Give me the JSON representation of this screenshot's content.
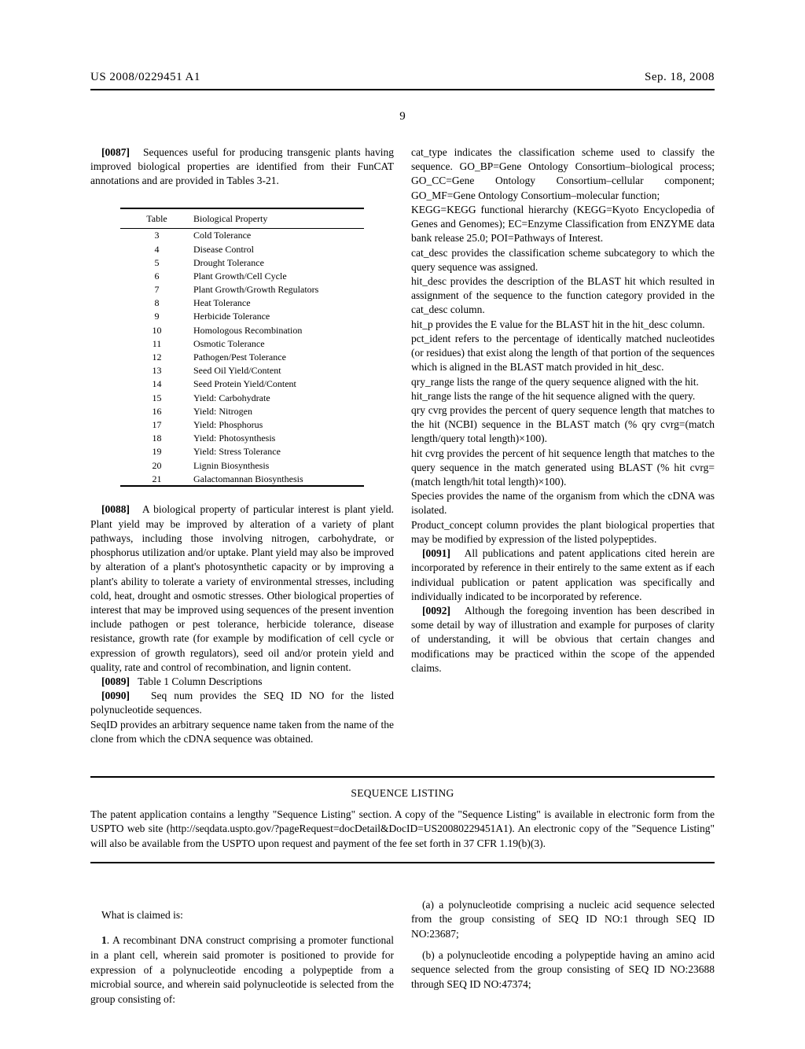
{
  "header": {
    "pub_number": "US 2008/0229451 A1",
    "pub_date": "Sep. 18, 2008",
    "page_number": "9"
  },
  "left_column": {
    "para_0087_num": "[0087]",
    "para_0087": "Sequences useful for producing transgenic plants having improved biological properties are identified from their FunCAT annotations and are provided in Tables 3-21.",
    "table": {
      "headers": [
        "Table",
        "Biological Property"
      ],
      "rows": [
        [
          "3",
          "Cold Tolerance"
        ],
        [
          "4",
          "Disease Control"
        ],
        [
          "5",
          "Drought Tolerance"
        ],
        [
          "6",
          "Plant Growth/Cell Cycle"
        ],
        [
          "7",
          "Plant Growth/Growth Regulators"
        ],
        [
          "8",
          "Heat Tolerance"
        ],
        [
          "9",
          "Herbicide Tolerance"
        ],
        [
          "10",
          "Homologous Recombination"
        ],
        [
          "11",
          "Osmotic Tolerance"
        ],
        [
          "12",
          "Pathogen/Pest Tolerance"
        ],
        [
          "13",
          "Seed Oil Yield/Content"
        ],
        [
          "14",
          "Seed Protein Yield/Content"
        ],
        [
          "15",
          "Yield: Carbohydrate"
        ],
        [
          "16",
          "Yield: Nitrogen"
        ],
        [
          "17",
          "Yield: Phosphorus"
        ],
        [
          "18",
          "Yield: Photosynthesis"
        ],
        [
          "19",
          "Yield: Stress Tolerance"
        ],
        [
          "20",
          "Lignin Biosynthesis"
        ],
        [
          "21",
          "Galactomannan Biosynthesis"
        ]
      ]
    },
    "para_0088_num": "[0088]",
    "para_0088": "A biological property of particular interest is plant yield. Plant yield may be improved by alteration of a variety of plant pathways, including those involving nitrogen, carbohydrate, or phosphorus utilization and/or uptake. Plant yield may also be improved by alteration of a plant's photosynthetic capacity or by improving a plant's ability to tolerate a variety of environmental stresses, including cold, heat, drought and osmotic stresses. Other biological properties of interest that may be improved using sequences of the present invention include pathogen or pest tolerance, herbicide tolerance, disease resistance, growth rate (for example by modification of cell cycle or expression of growth regulators), seed oil and/or protein yield and quality, rate and control of recombination, and lignin content.",
    "para_0089_num": "[0089]",
    "para_0089": "Table 1 Column Descriptions",
    "para_0090_num": "[0090]",
    "para_0090": "Seq num provides the SEQ ID NO for the listed polynucleotide sequences.",
    "seqid_line": "SeqID provides an arbitrary sequence name taken from the name of the clone from which the cDNA sequence was obtained."
  },
  "right_column": {
    "p1": "cat_type indicates the classification scheme used to classify the sequence. GO_BP=Gene Ontology Consortium–biological process; GO_CC=Gene Ontology Consortium–cellular component; GO_MF=Gene Ontology Consortium–molecular function;",
    "p2": "KEGG=KEGG functional hierarchy (KEGG=Kyoto Encyclopedia of Genes and Genomes); EC=Enzyme Classification from ENZYME data bank release 25.0; POI=Pathways of Interest.",
    "p3": "cat_desc provides the classification scheme subcategory to which the query sequence was assigned.",
    "p4": "hit_desc provides the description of the BLAST hit which resulted in assignment of the sequence to the function category provided in the cat_desc column.",
    "p5": "hit_p provides the E value for the BLAST hit in the hit_desc column.",
    "p6": "pct_ident refers to the percentage of identically matched nucleotides (or residues) that exist along the length of that portion of the sequences which is aligned in the BLAST match provided in hit_desc.",
    "p7": "qry_range lists the range of the query sequence aligned with the hit.",
    "p8": "hit_range lists the range of the hit sequence aligned with the query.",
    "p9": "qry cvrg provides the percent of query sequence length that matches to the hit (NCBI) sequence in the BLAST match (% qry cvrg=(match length/query total length)×100).",
    "p10": "hit cvrg provides the percent of hit sequence length that matches to the query sequence in the match generated using BLAST (% hit cvrg=(match length/hit total length)×100).",
    "p11": "Species provides the name of the organism from which the cDNA was isolated.",
    "p12": "Product_concept column provides the plant biological properties that may be modified by expression of the listed polypeptides.",
    "para_0091_num": "[0091]",
    "para_0091": "All publications and patent applications cited herein are incorporated by reference in their entirely to the same extent as if each individual publication or patent application was specifically and individually indicated to be incorporated by reference.",
    "para_0092_num": "[0092]",
    "para_0092": "Although the foregoing invention has been described in some detail by way of illustration and example for purposes of clarity of understanding, it will be obvious that certain changes and modifications may be practiced within the scope of the appended claims."
  },
  "sequence_listing": {
    "title": "SEQUENCE LISTING",
    "body": "The patent application contains a lengthy \"Sequence Listing\" section. A copy of the \"Sequence Listing\" is available in electronic form from the USPTO web site (http://seqdata.uspto.gov/?pageRequest=docDetail&DocID=US20080229451A1). An electronic copy of the \"Sequence Listing\" will also be available from the USPTO upon request and payment of the fee set forth in 37 CFR 1.19(b)(3)."
  },
  "claims": {
    "lead": "What is claimed is:",
    "c1_num": "1",
    "c1": ". A recombinant DNA construct comprising a promoter functional in a plant cell, wherein said promoter is positioned to provide for expression of a polynucleotide encoding a polypeptide from a microbial source, and wherein said polynucleotide is selected from the group consisting of:",
    "c1a": "(a) a polynucleotide comprising a nucleic acid sequence selected from the group consisting of SEQ ID NO:1 through SEQ ID NO:23687;",
    "c1b": "(b) a polynucleotide encoding a polypeptide having an amino acid sequence selected from the group consisting of SEQ ID NO:23688 through SEQ ID NO:47374;"
  }
}
